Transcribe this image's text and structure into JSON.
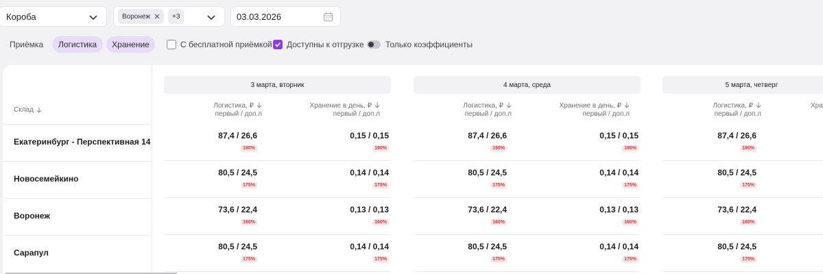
{
  "filters": {
    "type_select": "Короба",
    "warehouse_chip": "Воронеж",
    "warehouse_more": "+3",
    "date": "03.03.2026"
  },
  "toolbar": {
    "acceptance_label": "Приёмка",
    "tab_logistics": "Логистика",
    "tab_storage": "Хранение",
    "free_acceptance": "С бесплатной приёмкой",
    "available_shipment": "Доступны к отгрузке",
    "only_coefficients": "Только коэффициенты"
  },
  "table": {
    "warehouse_header": "Склад",
    "days": [
      {
        "label": "3 марта, вторник"
      },
      {
        "label": "4 марта, среда"
      },
      {
        "label": "5 марта, четверг"
      }
    ],
    "col_logistics": "Логистика, ₽",
    "col_storage": "Хранение в день, ₽",
    "col_storage_partial": "Хра",
    "col_sub": "первый / доп.л",
    "rows": [
      {
        "name": "Екатеринбург - Перспективная 14",
        "log": "87,4 / 26,6",
        "log_pct": "190%",
        "stor": "0,15 / 0,15",
        "stor_pct": "190%"
      },
      {
        "name": "Новосемейкино",
        "log": "80,5 / 24,5",
        "log_pct": "175%",
        "stor": "0,14 / 0,14",
        "stor_pct": "175%"
      },
      {
        "name": "Воронеж",
        "log": "73,6 / 22,4",
        "log_pct": "160%",
        "stor": "0,13 / 0,13",
        "stor_pct": "160%"
      },
      {
        "name": "Сарапул",
        "log": "80,5 / 24,5",
        "log_pct": "175%",
        "stor": "0,14 / 0,14",
        "stor_pct": "175%"
      }
    ]
  },
  "icons": {
    "chevron": "chevron-down-icon",
    "close": "close-icon",
    "calendar": "calendar-icon",
    "sort": "sort-arrow-icon",
    "check": "check-icon"
  },
  "colors": {
    "accent": "#8b3ee0",
    "pill_bg": "#e6dcf9",
    "badge_bg": "#fde3e3",
    "badge_text": "#d23a3a"
  }
}
